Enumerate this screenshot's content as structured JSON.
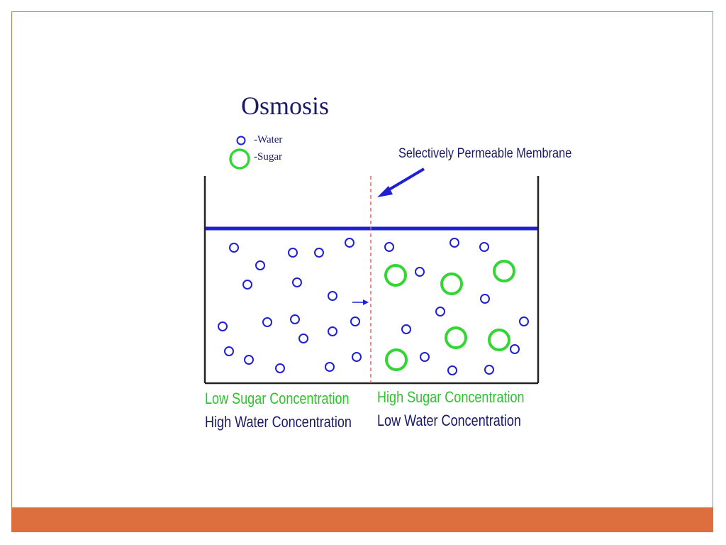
{
  "slide": {
    "title": "Osmosis",
    "legend": {
      "water_label": "-Water",
      "sugar_label": "-Sugar"
    },
    "membrane_label": "Selectively Permeable Membrane",
    "left_side": {
      "sugar_caption": "Low Sugar Concentration",
      "water_caption": "High Water Concentration"
    },
    "right_side": {
      "sugar_caption": "High Sugar Concentration",
      "water_caption": "Low Water Concentration"
    }
  },
  "colors": {
    "water": "#1f1fd6",
    "sugar": "#33d633",
    "text_navy": "#1a1a66",
    "membrane": "#d46a6a",
    "accent_bar": "#dd6f3e"
  }
}
